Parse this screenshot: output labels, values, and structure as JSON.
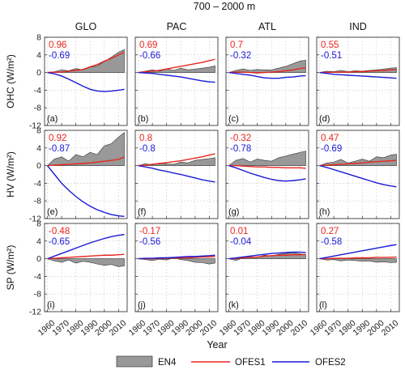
{
  "figure_title": "700 – 2000 m",
  "column_titles": [
    "GLO",
    "PAC",
    "ATL",
    "IND"
  ],
  "row_labels": [
    "OHC (W/m²)",
    "HV (W/m²)",
    "SP (W/m²)"
  ],
  "xlabel": "Year",
  "x_ticks": [
    "1960",
    "1970",
    "1980",
    "1990",
    "2000",
    "2010"
  ],
  "y_ticks": [
    "8",
    "4",
    "0",
    "-4",
    "-8",
    "-12"
  ],
  "legend": [
    {
      "label": "EN4",
      "style": "filled-area",
      "color": "#999999"
    },
    {
      "label": "OFES1",
      "style": "line",
      "color": "#e8261f"
    },
    {
      "label": "OFES2",
      "style": "line",
      "color": "#1a1ad6"
    }
  ],
  "colors": {
    "en4_fill": "#999999",
    "ofes1": "#e8261f",
    "ofes2": "#1a1ad6",
    "grid": "#d0d0d0"
  },
  "chart_data": {
    "type": "line",
    "x": [
      1960,
      1965,
      1970,
      1975,
      1980,
      1985,
      1990,
      1995,
      2000,
      2005,
      2010,
      2014
    ],
    "ylim": [
      -12,
      8
    ],
    "xlim": [
      1958,
      2016
    ],
    "panels": [
      {
        "label": "(a)",
        "row": "OHC",
        "col": "GLO",
        "r1": "0.96",
        "r2": "-0.69",
        "en4": [
          0,
          0.2,
          0.6,
          0.4,
          0.9,
          0.6,
          1.2,
          1.5,
          2.5,
          3.5,
          4.6,
          5.2
        ],
        "ofes1": [
          0,
          0.1,
          0.1,
          0.3,
          0.5,
          0.7,
          1.3,
          1.8,
          2.6,
          3.2,
          4.0,
          4.6
        ],
        "ofes2": [
          0,
          -0.3,
          -0.8,
          -1.5,
          -2.3,
          -3.1,
          -3.8,
          -4.2,
          -4.3,
          -4.2,
          -4.0,
          -3.8
        ]
      },
      {
        "label": "(b)",
        "row": "OHC",
        "col": "PAC",
        "r1": "0.69",
        "r2": "-0.66",
        "en4": [
          0,
          0.3,
          0.6,
          0.3,
          0.8,
          0.5,
          1.0,
          0.6,
          0.8,
          1.0,
          1.2,
          1.5
        ],
        "ofes1": [
          0,
          0.2,
          0.3,
          0.5,
          0.8,
          1.1,
          1.4,
          1.7,
          2.0,
          2.3,
          2.7,
          3.0
        ],
        "ofes2": [
          0,
          -0.1,
          -0.2,
          -0.4,
          -0.6,
          -0.8,
          -1.0,
          -1.3,
          -1.6,
          -1.9,
          -2.1,
          -2.2
        ]
      },
      {
        "label": "(c)",
        "row": "OHC",
        "col": "ATL",
        "r1": "0.7",
        "r2": "-0.32",
        "en4": [
          0,
          0.5,
          0.8,
          0.5,
          0.7,
          0.6,
          0.6,
          1.0,
          1.4,
          2.0,
          2.6,
          2.8
        ],
        "ofes1": [
          0,
          0.1,
          0.1,
          0.0,
          -0.1,
          0.0,
          0.1,
          0.2,
          0.4,
          0.6,
          0.9,
          1.1
        ],
        "ofes2": [
          0,
          -0.2,
          -0.4,
          -0.6,
          -0.9,
          -1.2,
          -1.3,
          -1.3,
          -1.1,
          -1.0,
          -0.8,
          -0.7
        ]
      },
      {
        "label": "(d)",
        "row": "OHC",
        "col": "IND",
        "r1": "0.55",
        "r2": "-0.51",
        "en4": [
          0,
          0.3,
          0.2,
          0.5,
          0.2,
          0.4,
          0.3,
          0.5,
          0.6,
          0.8,
          1.0,
          1.1
        ],
        "ofes1": [
          0,
          0.0,
          0.1,
          0.1,
          0.1,
          0.2,
          0.2,
          0.3,
          0.4,
          0.5,
          0.6,
          0.7
        ],
        "ofes2": [
          0,
          -0.2,
          -0.4,
          -0.5,
          -0.6,
          -0.7,
          -0.8,
          -0.9,
          -1.0,
          -1.1,
          -1.2,
          -1.3
        ]
      },
      {
        "label": "(e)",
        "row": "HV",
        "col": "GLO",
        "r1": "0.92",
        "r2": "-0.87",
        "en4": [
          0,
          1.5,
          2.0,
          1.0,
          2.5,
          2.0,
          3.0,
          2.5,
          4.5,
          5.0,
          6.5,
          7.5
        ],
        "ofes1": [
          0,
          0.1,
          0.2,
          0.3,
          0.4,
          0.5,
          0.6,
          0.8,
          1.0,
          1.2,
          1.4,
          2.0
        ],
        "ofes2": [
          0,
          -2.0,
          -4.0,
          -5.6,
          -7.0,
          -8.2,
          -9.2,
          -10.0,
          -10.6,
          -11.1,
          -11.4,
          -11.5
        ]
      },
      {
        "label": "(f)",
        "row": "HV",
        "col": "PAC",
        "r1": "0.8",
        "r2": "-0.8",
        "en4": [
          0,
          0.4,
          0.2,
          0.6,
          0.4,
          0.3,
          0.8,
          0.6,
          1.2,
          1.4,
          1.6,
          1.8
        ],
        "ofes1": [
          0,
          0.1,
          0.3,
          0.5,
          0.7,
          0.9,
          1.1,
          1.4,
          1.7,
          2.0,
          2.4,
          2.7
        ],
        "ofes2": [
          0,
          -0.3,
          -0.6,
          -1.0,
          -1.3,
          -1.7,
          -2.0,
          -2.4,
          -2.8,
          -3.2,
          -3.5,
          -3.7
        ]
      },
      {
        "label": "(g)",
        "row": "HV",
        "col": "ATL",
        "r1": "-0.32",
        "r2": "-0.78",
        "en4": [
          0,
          1.2,
          1.6,
          0.8,
          1.5,
          1.2,
          1.0,
          1.8,
          2.2,
          2.6,
          3.0,
          3.3
        ],
        "ofes1": [
          0,
          0.0,
          -0.1,
          -0.2,
          -0.3,
          -0.3,
          -0.4,
          -0.4,
          -0.5,
          -0.5,
          -0.5,
          -0.6
        ],
        "ofes2": [
          0,
          -0.5,
          -1.1,
          -1.7,
          -2.2,
          -2.7,
          -3.1,
          -3.4,
          -3.5,
          -3.4,
          -3.2,
          -3.0
        ]
      },
      {
        "label": "(h)",
        "row": "HV",
        "col": "IND",
        "r1": "0.47",
        "r2": "-0.69",
        "en4": [
          0,
          0.6,
          0.8,
          1.4,
          0.6,
          1.0,
          1.5,
          1.0,
          2.0,
          1.8,
          2.4,
          2.6
        ],
        "ofes1": [
          0,
          0.1,
          0.2,
          0.3,
          0.4,
          0.5,
          0.6,
          0.8,
          0.9,
          1.0,
          1.1,
          1.2
        ],
        "ofes2": [
          0,
          -0.4,
          -0.9,
          -1.4,
          -1.9,
          -2.4,
          -2.9,
          -3.4,
          -3.9,
          -4.3,
          -4.6,
          -4.8
        ]
      },
      {
        "label": "(i)",
        "row": "SP",
        "col": "GLO",
        "r1": "-0.48",
        "r2": "-0.65",
        "en4": [
          0,
          -0.5,
          -0.8,
          -0.3,
          -1.0,
          -0.6,
          -0.8,
          -1.2,
          -1.5,
          -1.3,
          -1.8,
          -1.6
        ],
        "ofes1": [
          0,
          0.1,
          0.2,
          0.3,
          0.4,
          0.5,
          0.6,
          0.7,
          0.8,
          0.8,
          0.9,
          1.0
        ],
        "ofes2": [
          0,
          0.6,
          1.2,
          1.8,
          2.4,
          3.0,
          3.6,
          4.1,
          4.6,
          5.0,
          5.3,
          5.5
        ]
      },
      {
        "label": "(j)",
        "row": "SP",
        "col": "PAC",
        "r1": "-0.17",
        "r2": "-0.56",
        "en4": [
          0,
          -0.2,
          -0.4,
          -0.1,
          -0.3,
          0.2,
          -0.2,
          -0.4,
          -0.8,
          -0.9,
          -1.2,
          -1.0
        ],
        "ofes1": [
          0,
          0.0,
          0.0,
          0.1,
          0.1,
          0.2,
          0.2,
          0.2,
          0.3,
          0.4,
          0.4,
          0.5
        ],
        "ofes2": [
          0,
          0.1,
          0.1,
          0.2,
          0.2,
          0.3,
          0.4,
          0.5,
          0.5,
          0.6,
          0.7,
          0.8
        ]
      },
      {
        "label": "(k)",
        "row": "SP",
        "col": "ATL",
        "r1": "0.01",
        "r2": "-0.04",
        "en4": [
          0,
          -0.4,
          0.2,
          0.5,
          0.3,
          0.8,
          0.6,
          1.0,
          1.2,
          1.4,
          1.1,
          0.9
        ],
        "ofes1": [
          0,
          0.1,
          0.2,
          0.3,
          0.4,
          0.6,
          0.7,
          0.8,
          0.8,
          0.9,
          0.9,
          1.0
        ],
        "ofes2": [
          0,
          0.2,
          0.4,
          0.6,
          0.8,
          1.0,
          1.2,
          1.3,
          1.4,
          1.5,
          1.5,
          1.4
        ]
      },
      {
        "label": "(l)",
        "row": "SP",
        "col": "IND",
        "r1": "0.27",
        "r2": "-0.58",
        "en4": [
          0,
          -0.3,
          -0.2,
          -0.5,
          -0.3,
          -0.4,
          -0.6,
          -0.5,
          -0.8,
          -0.7,
          -0.9,
          -0.8
        ],
        "ofes1": [
          0,
          0.0,
          0.1,
          0.1,
          0.1,
          0.2,
          0.2,
          0.2,
          0.3,
          0.3,
          0.3,
          0.4
        ],
        "ofes2": [
          0,
          0.3,
          0.6,
          0.9,
          1.2,
          1.5,
          1.8,
          2.1,
          2.4,
          2.7,
          3.0,
          3.2
        ]
      }
    ]
  }
}
